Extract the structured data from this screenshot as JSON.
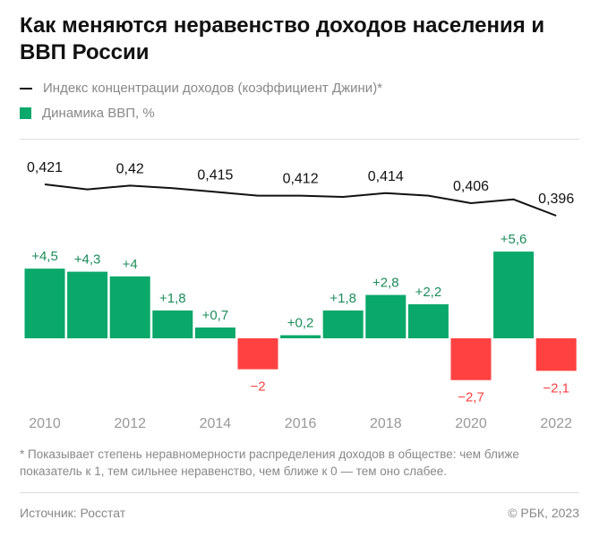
{
  "title": "Как меняются неравенство доходов населения и ВВП России",
  "legend": {
    "gini": "Индекс концентрации доходов (коэффициент Джини)*",
    "gdp": "Динамика ВВП, %"
  },
  "colors": {
    "positive": "#0aa86a",
    "negative": "#ff4141",
    "positive_label": "#1c8c5c",
    "negative_label": "#ff4141",
    "line": "#111111"
  },
  "chart_data": {
    "type": "bar+line",
    "x": [
      2010,
      2011,
      2012,
      2013,
      2014,
      2015,
      2016,
      2017,
      2018,
      2019,
      2020,
      2021,
      2022
    ],
    "x_tick_labels": [
      "2010",
      "2012",
      "2014",
      "2016",
      "2018",
      "2020",
      "2022"
    ],
    "series": [
      {
        "name": "Динамика ВВП, %",
        "type": "bar",
        "values": [
          4.5,
          4.3,
          4,
          1.8,
          0.7,
          -2,
          0.2,
          1.8,
          2.8,
          2.2,
          -2.7,
          5.6,
          -2.1
        ],
        "labels": [
          "+4,5",
          "+4,3",
          "+4",
          "+1,8",
          "+0,7",
          "−2",
          "+0,2",
          "+1,8",
          "+2,8",
          "+2,2",
          "−2,7",
          "+5,6",
          "−2,1"
        ]
      },
      {
        "name": "Индекс концентрации доходов (коэффициент Джини)*",
        "type": "line",
        "values": [
          0.421,
          0.417,
          0.42,
          0.418,
          0.415,
          0.412,
          0.412,
          0.411,
          0.414,
          0.412,
          0.406,
          0.409,
          0.396
        ],
        "labels": [
          "0,421",
          "",
          "0,42",
          "",
          "0,415",
          "",
          "0,412",
          "",
          "0,414",
          "",
          "0,406",
          "",
          "0,396"
        ]
      }
    ]
  },
  "footnote": "* Показывает степень неравномерности распределения доходов в обществе: чем ближе показатель к 1, тем сильнее неравенство, чем ближе к 0 — тем оно слабее.",
  "source": "Источник: Росстат",
  "copyright": "© РБК, 2023"
}
